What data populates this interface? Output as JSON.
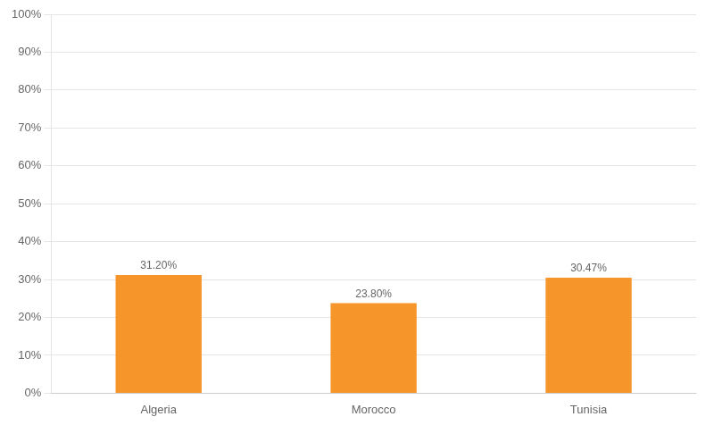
{
  "chart_data": {
    "type": "bar",
    "categories": [
      "Algeria",
      "Morocco",
      "Tunisia"
    ],
    "values": [
      31.2,
      23.8,
      30.47
    ],
    "value_labels": [
      "31.20%",
      "23.80%",
      "30.47%"
    ],
    "data_labels": true,
    "color": "#F5952A",
    "ylim": [
      0,
      100
    ],
    "yticks": [
      {
        "value": 0,
        "label": "0%"
      },
      {
        "value": 10,
        "label": "10%"
      },
      {
        "value": 20,
        "label": "20%"
      },
      {
        "value": 30,
        "label": "30%"
      },
      {
        "value": 40,
        "label": "40%"
      },
      {
        "value": 50,
        "label": "50%"
      },
      {
        "value": 60,
        "label": "60%"
      },
      {
        "value": 70,
        "label": "70%"
      },
      {
        "value": 80,
        "label": "80%"
      },
      {
        "value": 90,
        "label": "90%"
      },
      {
        "value": 100,
        "label": "100%"
      }
    ],
    "grid": true
  }
}
